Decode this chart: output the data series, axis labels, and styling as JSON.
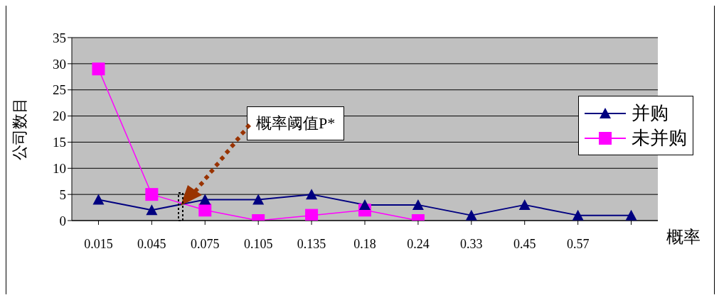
{
  "chart_data": {
    "type": "line",
    "xlabel": "概率",
    "ylabel": "公司数目",
    "categories": [
      "0.015",
      "0.045",
      "0.075",
      "0.105",
      "0.135",
      "0.18",
      "0.24",
      "0.33",
      "0.45",
      "0.57",
      null
    ],
    "series": [
      {
        "name": "并购",
        "color": "#000080",
        "marker": "triangle",
        "values": [
          4,
          2,
          4,
          4,
          5,
          3,
          3,
          1,
          3,
          1,
          1
        ]
      },
      {
        "name": "未并购",
        "color": "#ff00ff",
        "marker": "square",
        "values": [
          29,
          5,
          2,
          0,
          1,
          2,
          0,
          null,
          null,
          null,
          null
        ]
      }
    ],
    "ylim": [
      0,
      35
    ],
    "yticks": [
      0,
      5,
      10,
      15,
      20,
      25,
      30,
      35
    ],
    "grid": "y",
    "legend": "right",
    "annotations": [
      "概率阈值P*"
    ]
  }
}
